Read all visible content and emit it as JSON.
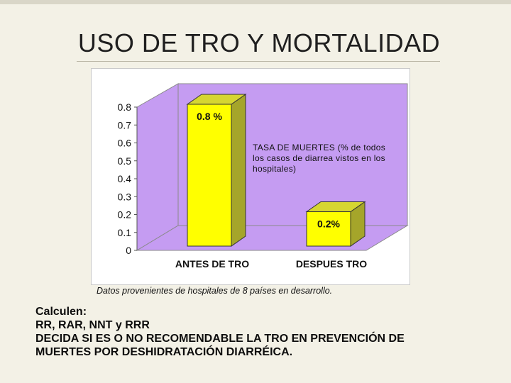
{
  "slide": {
    "title": "USO DE TRO Y MORTALIDAD",
    "source_note": "Datos provenientes de hospitales de 8 países en desarrollo.",
    "task_lines": [
      "Calculen:",
      "RR, RAR, NNT y RRR",
      "DECIDA SI ES O NO RECOMENDABLE LA TRO EN PREVENCIÓN DE",
      "MUERTES POR DESHIDRATACIÓN DIARRÉICA."
    ]
  },
  "chart_data": {
    "type": "bar",
    "categories": [
      "ANTES DE TRO",
      "DESPUES TRO"
    ],
    "values": [
      0.8,
      0.2
    ],
    "data_labels": [
      "0.8 %",
      "0.2%"
    ],
    "annotation": "TASA DE MUERTES (% de todos los casos de diarrea vistos en los hospitales)",
    "y_ticks": [
      "0",
      "0.1",
      "0.2",
      "0.3",
      "0.4",
      "0.5",
      "0.6",
      "0.7",
      "0.8"
    ],
    "ylim": [
      0,
      0.8
    ],
    "grid": false,
    "style": "3d",
    "colors": {
      "bar_front": "#ffff00",
      "bar_side": "#a5a52a",
      "bar_top": "#d6d631",
      "wall": "#c59cf2",
      "floor": "#c59cf2"
    }
  }
}
